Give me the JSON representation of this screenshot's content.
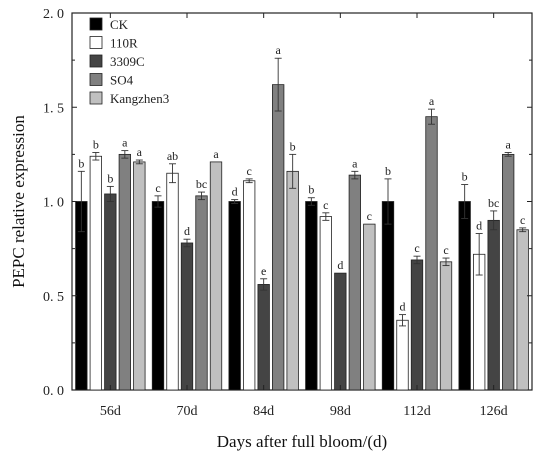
{
  "chart_data": {
    "type": "bar",
    "xlabel": "Days after full bloom/(d)",
    "ylabel": "PEPC relative expression",
    "ylim": [
      0,
      2.0
    ],
    "yticks": [
      "0. 0",
      "0. 5",
      "1. 0",
      "1. 5",
      "2. 0"
    ],
    "ytick_values": [
      0,
      0.5,
      1.0,
      1.5,
      2.0
    ],
    "categories": [
      "56d",
      "70d",
      "84d",
      "98d",
      "112d",
      "126d"
    ],
    "legend_position": "top-left",
    "series": [
      {
        "name": "CK",
        "color": "#000000",
        "values": [
          1.0,
          1.0,
          1.0,
          1.0,
          1.0,
          1.0
        ],
        "errors": [
          0.16,
          0.03,
          0.01,
          0.02,
          0.12,
          0.09
        ],
        "labels": [
          "b",
          "c",
          "d",
          "b",
          "b",
          "b"
        ]
      },
      {
        "name": "110R",
        "color": "#ffffff",
        "values": [
          1.24,
          1.15,
          1.11,
          0.92,
          0.37,
          0.72
        ],
        "errors": [
          0.02,
          0.05,
          0.01,
          0.02,
          0.03,
          0.11
        ],
        "labels": [
          "b",
          "ab",
          "c",
          "c",
          "d",
          "d"
        ]
      },
      {
        "name": "3309C",
        "color": "#444444",
        "values": [
          1.04,
          0.78,
          0.56,
          0.62,
          0.69,
          0.9
        ],
        "errors": [
          0.04,
          0.02,
          0.03,
          0.0,
          0.02,
          0.05
        ],
        "labels": [
          "b",
          "d",
          "e",
          "d",
          "c",
          "bc"
        ]
      },
      {
        "name": "SO4",
        "color": "#808080",
        "values": [
          1.25,
          1.03,
          1.62,
          1.14,
          1.45,
          1.25
        ],
        "errors": [
          0.02,
          0.02,
          0.14,
          0.02,
          0.04,
          0.01
        ],
        "labels": [
          "a",
          "bc",
          "a",
          "a",
          "a",
          "a"
        ]
      },
      {
        "name": "Kangzhen3",
        "color": "#c0c0c0",
        "values": [
          1.21,
          1.21,
          1.16,
          0.88,
          0.68,
          0.85
        ],
        "errors": [
          0.01,
          0.0,
          0.09,
          0.0,
          0.02,
          0.01
        ],
        "labels": [
          "a",
          "a",
          "b",
          "c",
          "c",
          "c"
        ]
      }
    ]
  }
}
